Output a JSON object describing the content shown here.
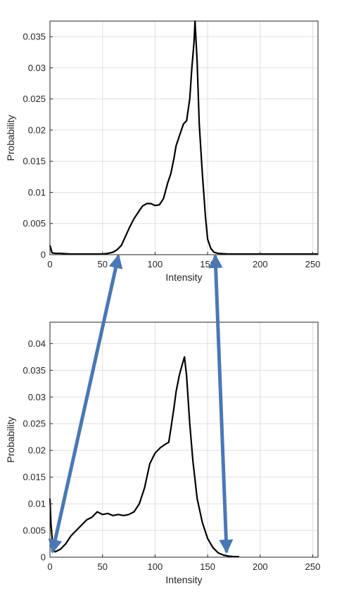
{
  "colors": {
    "line": "#000000",
    "axis": "#262626",
    "grid": "#dfdfdf",
    "arrow": "#4a78b5"
  },
  "chart_data": [
    {
      "type": "line",
      "title": "",
      "xlabel": "Intensity",
      "ylabel": "Probability",
      "xlim": [
        0,
        255
      ],
      "ylim": [
        0,
        0.0375
      ],
      "grid": true,
      "xticks": [
        0,
        50,
        100,
        150,
        200,
        250
      ],
      "xtick_labels": [
        "0",
        "50",
        "100",
        "150",
        "200",
        "250"
      ],
      "yticks": [
        0,
        0.005,
        0.01,
        0.015,
        0.02,
        0.025,
        0.03,
        0.035
      ],
      "ytick_labels": [
        "0",
        "0.005",
        "0.01",
        "0.015",
        "0.02",
        "0.025",
        "0.03",
        "0.035"
      ],
      "series": [
        {
          "x": [
            0,
            2,
            5,
            10,
            20,
            30,
            40,
            50,
            55,
            60,
            64,
            68,
            72,
            76,
            80,
            84,
            88,
            92,
            96,
            100,
            104,
            108,
            112,
            115,
            118,
            120,
            122,
            125,
            127,
            130,
            133,
            135,
            137,
            138,
            140,
            142,
            145,
            148,
            150,
            153,
            156,
            160,
            170,
            200,
            255
          ],
          "y": [
            0.0015,
            0.0003,
            0.0002,
            0.0002,
            0.0001,
            0.0001,
            0.0001,
            0.0001,
            0.0002,
            0.0004,
            0.0008,
            0.0015,
            0.003,
            0.0045,
            0.0058,
            0.0068,
            0.0078,
            0.0082,
            0.0082,
            0.0079,
            0.008,
            0.009,
            0.0115,
            0.013,
            0.0155,
            0.0175,
            0.0185,
            0.02,
            0.021,
            0.0215,
            0.025,
            0.03,
            0.034,
            0.0375,
            0.031,
            0.021,
            0.013,
            0.006,
            0.0025,
            0.001,
            0.0004,
            0.0002,
            0.0001,
            0.0001,
            0.0001
          ]
        }
      ]
    },
    {
      "type": "line",
      "title": "",
      "xlabel": "Intensity",
      "ylabel": "Probability",
      "xlim": [
        0,
        255
      ],
      "ylim": [
        0,
        0.044
      ],
      "grid": true,
      "xticks": [
        0,
        50,
        100,
        150,
        200,
        250
      ],
      "xtick_labels": [
        "0",
        "50",
        "100",
        "150",
        "200",
        "250"
      ],
      "yticks": [
        0,
        0.005,
        0.01,
        0.015,
        0.02,
        0.025,
        0.03,
        0.035,
        0.04
      ],
      "ytick_labels": [
        "0",
        "0.005",
        "0.01",
        "0.015",
        "0.02",
        "0.025",
        "0.03",
        "0.035",
        "0.04"
      ],
      "series": [
        {
          "x": [
            0,
            1,
            3,
            5,
            10,
            15,
            20,
            25,
            30,
            35,
            40,
            45,
            50,
            55,
            60,
            65,
            70,
            75,
            80,
            85,
            90,
            95,
            100,
            105,
            110,
            113,
            115,
            118,
            120,
            123,
            125,
            128,
            130,
            133,
            136,
            140,
            145,
            150,
            155,
            160,
            165,
            170,
            175,
            180
          ],
          "y": [
            0.011,
            0.006,
            0.0015,
            0.001,
            0.0015,
            0.0025,
            0.004,
            0.005,
            0.006,
            0.007,
            0.0075,
            0.0085,
            0.008,
            0.0082,
            0.0078,
            0.008,
            0.0078,
            0.008,
            0.0085,
            0.01,
            0.013,
            0.0175,
            0.0195,
            0.0205,
            0.0212,
            0.0215,
            0.024,
            0.028,
            0.031,
            0.034,
            0.0355,
            0.0375,
            0.034,
            0.025,
            0.018,
            0.011,
            0.0065,
            0.0035,
            0.0018,
            0.0008,
            0.0004,
            0.0002,
            0.0001,
            0.0001
          ]
        }
      ]
    }
  ]
}
